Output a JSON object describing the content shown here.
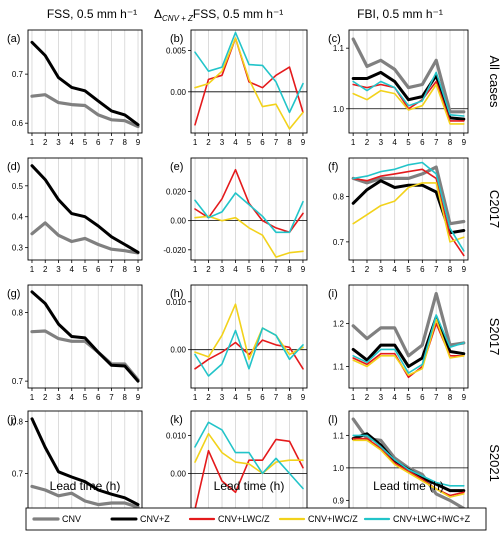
{
  "column_titles": [
    "FSS, 0.5 mm h⁻¹",
    "Δ",
    "CNV + Z",
    "FSS, 0.5 mm h⁻¹",
    "FBI, 0.5 mm h⁻¹"
  ],
  "panel_labels": [
    "(a)",
    "(b)",
    "(c)",
    "(d)",
    "(e)",
    "(f)",
    "(g)",
    "(h)",
    "(i)",
    "(j)",
    "(k)",
    "(l)"
  ],
  "row_labels": [
    "All cases",
    "C2017",
    "S2017",
    "S2021"
  ],
  "xlabel": "Lead time (h)",
  "series": [
    {
      "name": "CNV",
      "color": "#808080"
    },
    {
      "name": "CNV+Z",
      "color": "#000000"
    },
    {
      "name": "CNV+LWC/Z",
      "color": "#e41a1c"
    },
    {
      "name": "CNV+IWC/Z",
      "color": "#f2d21b"
    },
    {
      "name": "CNV+LWC+IWC+Z",
      "color": "#22c4c9"
    }
  ],
  "chart_data": [
    {
      "type": "line",
      "panel": "(a)",
      "row": "All cases",
      "x": [
        1,
        2,
        3,
        4,
        5,
        6,
        7,
        8,
        9
      ],
      "ylim": [
        0.58,
        0.79
      ],
      "yticks": [
        0.6,
        0.7
      ],
      "series": [
        {
          "name": "CNV",
          "values": [
            0.655,
            0.658,
            0.642,
            0.638,
            0.636,
            0.617,
            0.607,
            0.605,
            0.593
          ]
        },
        {
          "name": "CNV+Z",
          "values": [
            0.765,
            0.738,
            0.693,
            0.673,
            0.666,
            0.645,
            0.625,
            0.617,
            0.597
          ]
        }
      ]
    },
    {
      "type": "line",
      "panel": "(b)",
      "row": "All cases",
      "x": [
        1,
        2,
        3,
        4,
        5,
        6,
        7,
        8,
        9
      ],
      "ylim": [
        -0.005,
        0.0075
      ],
      "yticks": [
        0.0,
        0.005
      ],
      "zero_line": true,
      "series": [
        {
          "name": "CNV+LWC/Z",
          "values": [
            -0.004,
            0.0015,
            0.002,
            0.0065,
            0.0012,
            0.0005,
            0.002,
            0.003,
            -0.0025
          ]
        },
        {
          "name": "CNV+IWC/Z",
          "values": [
            0.0005,
            0.001,
            0.0025,
            0.0065,
            0.0015,
            -0.0018,
            -0.0015,
            -0.0045,
            -0.0025
          ]
        },
        {
          "name": "CNV+LWC+IWC+Z",
          "values": [
            0.0048,
            0.0025,
            0.003,
            0.0072,
            0.0033,
            0.0032,
            0.0012,
            -0.0025,
            0.001
          ]
        }
      ]
    },
    {
      "type": "line",
      "panel": "(c)",
      "row": "All cases",
      "x": [
        1,
        2,
        3,
        4,
        5,
        6,
        7,
        8,
        9
      ],
      "ylim": [
        0.96,
        1.13
      ],
      "yticks": [
        1.0,
        1.1
      ],
      "ref_line": 1.0,
      "series": [
        {
          "name": "CNV",
          "values": [
            1.115,
            1.07,
            1.08,
            1.065,
            1.035,
            1.04,
            1.08,
            0.995,
            0.995
          ]
        },
        {
          "name": "CNV+Z",
          "values": [
            1.05,
            1.05,
            1.06,
            1.045,
            1.015,
            1.02,
            1.055,
            0.985,
            0.983
          ]
        },
        {
          "name": "CNV+LWC/Z",
          "values": [
            1.04,
            1.035,
            1.04,
            1.035,
            1.0,
            1.015,
            1.045,
            0.98,
            0.98
          ]
        },
        {
          "name": "CNV+IWC/Z",
          "values": [
            1.025,
            1.015,
            1.03,
            1.025,
            0.998,
            1.005,
            1.04,
            0.975,
            0.975
          ]
        },
        {
          "name": "CNV+LWC+IWC+Z",
          "values": [
            1.045,
            1.03,
            1.045,
            1.035,
            1.005,
            1.013,
            1.06,
            0.99,
            0.988
          ]
        }
      ]
    },
    {
      "type": "line",
      "panel": "(d)",
      "row": "C2017",
      "x": [
        1,
        2,
        3,
        4,
        5,
        6,
        7,
        8,
        9
      ],
      "ylim": [
        0.26,
        0.59
      ],
      "yticks": [
        0.3,
        0.4,
        0.5
      ],
      "series": [
        {
          "name": "CNV",
          "values": [
            0.345,
            0.38,
            0.34,
            0.32,
            0.33,
            0.31,
            0.295,
            0.29,
            0.283
          ]
        },
        {
          "name": "CNV+Z",
          "values": [
            0.565,
            0.52,
            0.455,
            0.41,
            0.4,
            0.37,
            0.335,
            0.31,
            0.285
          ]
        }
      ]
    },
    {
      "type": "line",
      "panel": "(e)",
      "row": "C2017",
      "x": [
        1,
        2,
        3,
        4,
        5,
        6,
        7,
        8,
        9
      ],
      "ylim": [
        -0.027,
        0.043
      ],
      "yticks": [
        -0.02,
        0.0,
        0.02
      ],
      "zero_line": true,
      "series": [
        {
          "name": "CNV+LWC/Z",
          "values": [
            0.008,
            0.002,
            0.015,
            0.035,
            0.012,
            0.0,
            -0.005,
            -0.008,
            0.005
          ]
        },
        {
          "name": "CNV+IWC/Z",
          "values": [
            0.002,
            0.003,
            0.0,
            0.002,
            -0.005,
            -0.01,
            -0.025,
            -0.022,
            -0.021
          ]
        },
        {
          "name": "CNV+LWC+IWC+Z",
          "values": [
            0.014,
            0.002,
            0.006,
            0.019,
            0.011,
            0.003,
            -0.008,
            -0.008,
            0.013
          ]
        }
      ]
    },
    {
      "type": "line",
      "panel": "(f)",
      "row": "C2017",
      "x": [
        1,
        2,
        3,
        4,
        5,
        6,
        7,
        8,
        9
      ],
      "ylim": [
        0.66,
        0.885
      ],
      "yticks": [
        0.7,
        0.8
      ],
      "series": [
        {
          "name": "CNV",
          "values": [
            0.84,
            0.83,
            0.84,
            0.84,
            0.84,
            0.85,
            0.865,
            0.74,
            0.745
          ]
        },
        {
          "name": "CNV+Z",
          "values": [
            0.785,
            0.815,
            0.835,
            0.82,
            0.825,
            0.825,
            0.81,
            0.72,
            0.725
          ]
        },
        {
          "name": "CNV+LWC/Z",
          "values": [
            0.84,
            0.835,
            0.845,
            0.85,
            0.855,
            0.86,
            0.84,
            0.715,
            0.67
          ]
        },
        {
          "name": "CNV+IWC/Z",
          "values": [
            0.74,
            0.76,
            0.78,
            0.79,
            0.82,
            0.83,
            0.83,
            0.7,
            0.71
          ]
        },
        {
          "name": "CNV+LWC+IWC+Z",
          "values": [
            0.84,
            0.845,
            0.855,
            0.86,
            0.87,
            0.875,
            0.85,
            0.73,
            0.68
          ]
        }
      ]
    },
    {
      "type": "line",
      "panel": "(g)",
      "row": "S2017",
      "x": [
        1,
        2,
        3,
        4,
        5,
        6,
        7,
        8,
        9
      ],
      "ylim": [
        0.69,
        0.84
      ],
      "yticks": [
        0.7,
        0.8
      ],
      "series": [
        {
          "name": "CNV",
          "values": [
            0.772,
            0.773,
            0.762,
            0.758,
            0.758,
            0.742,
            0.725,
            0.725,
            0.702
          ]
        },
        {
          "name": "CNV+Z",
          "values": [
            0.83,
            0.813,
            0.783,
            0.765,
            0.763,
            0.742,
            0.723,
            0.722,
            0.7
          ]
        }
      ]
    },
    {
      "type": "line",
      "panel": "(h)",
      "row": "S2017",
      "x": [
        1,
        2,
        3,
        4,
        5,
        6,
        7,
        8,
        9
      ],
      "ylim": [
        -0.008,
        0.0135
      ],
      "yticks": [
        0.0,
        0.01
      ],
      "zero_line": true,
      "series": [
        {
          "name": "CNV+LWC/Z",
          "values": [
            -0.004,
            -0.002,
            -0.0005,
            0.0015,
            -0.001,
            0.002,
            0.001,
            0.0005,
            -0.004
          ]
        },
        {
          "name": "CNV+IWC/Z",
          "values": [
            -0.0005,
            -0.0015,
            0.003,
            0.0095,
            -0.002,
            0.0045,
            0.003,
            -0.001,
            0.0005
          ]
        },
        {
          "name": "CNV+LWC+IWC+Z",
          "values": [
            -0.001,
            -0.0055,
            -0.003,
            0.004,
            -0.004,
            0.0045,
            0.003,
            -0.002,
            0.001
          ]
        }
      ]
    },
    {
      "type": "line",
      "panel": "(i)",
      "row": "S2017",
      "x": [
        1,
        2,
        3,
        4,
        5,
        6,
        7,
        8,
        9
      ],
      "ylim": [
        1.05,
        1.29
      ],
      "yticks": [
        1.1,
        1.2
      ],
      "series": [
        {
          "name": "CNV",
          "values": [
            1.195,
            1.165,
            1.19,
            1.19,
            1.125,
            1.15,
            1.27,
            1.15,
            1.155
          ]
        },
        {
          "name": "CNV+Z",
          "values": [
            1.14,
            1.115,
            1.15,
            1.15,
            1.1,
            1.12,
            1.215,
            1.135,
            1.13
          ]
        },
        {
          "name": "CNV+LWC/Z",
          "values": [
            1.12,
            1.105,
            1.13,
            1.13,
            1.075,
            1.1,
            1.2,
            1.125,
            1.125
          ]
        },
        {
          "name": "CNV+IWC/Z",
          "values": [
            1.115,
            1.1,
            1.125,
            1.125,
            1.08,
            1.095,
            1.21,
            1.12,
            1.125
          ]
        },
        {
          "name": "CNV+LWC+IWC+Z",
          "values": [
            1.125,
            1.11,
            1.14,
            1.14,
            1.085,
            1.105,
            1.22,
            1.145,
            1.155
          ]
        }
      ]
    },
    {
      "type": "line",
      "panel": "(j)",
      "row": "S2021",
      "x": [
        1,
        2,
        3,
        4,
        5,
        6,
        7,
        8,
        9
      ],
      "ylim": [
        0.62,
        0.82
      ],
      "yticks": [
        0.7,
        0.8
      ],
      "series": [
        {
          "name": "CNV",
          "values": [
            0.675,
            0.668,
            0.657,
            0.662,
            0.647,
            0.64,
            0.643,
            0.643,
            0.635
          ]
        },
        {
          "name": "CNV+Z",
          "values": [
            0.805,
            0.75,
            0.703,
            0.693,
            0.684,
            0.668,
            0.66,
            0.653,
            0.64
          ]
        }
      ]
    },
    {
      "type": "line",
      "panel": "(k)",
      "row": "S2021",
      "x": [
        1,
        2,
        3,
        4,
        5,
        6,
        7,
        8,
        9
      ],
      "ylim": [
        -0.011,
        0.0165
      ],
      "yticks": [
        0.0,
        0.01
      ],
      "zero_line": true,
      "series": [
        {
          "name": "CNV+LWC/Z",
          "values": [
            -0.0095,
            0.006,
            -0.002,
            -0.005,
            0.0035,
            0.0035,
            0.009,
            0.0085,
            0.0015
          ]
        },
        {
          "name": "CNV+IWC/Z",
          "values": [
            0.003,
            0.0105,
            0.0055,
            0.003,
            0.0025,
            0.0,
            0.003,
            0.0035,
            0.0035
          ]
        },
        {
          "name": "CNV+LWC+IWC+Z",
          "values": [
            0.007,
            0.0135,
            0.0115,
            0.0055,
            0.0055,
            0.0,
            0.004,
            0.0,
            -0.004
          ]
        }
      ]
    },
    {
      "type": "line",
      "panel": "(l)",
      "row": "S2021",
      "x": [
        1,
        2,
        3,
        4,
        5,
        6,
        7,
        8,
        9
      ],
      "ylim": [
        0.855,
        1.175
      ],
      "yticks": [
        0.9,
        1.0,
        1.1
      ],
      "ref_line": 1.0,
      "series": [
        {
          "name": "CNV",
          "values": [
            1.15,
            1.09,
            1.085,
            1.03,
            1.0,
            0.98,
            0.92,
            0.9,
            0.875
          ]
        },
        {
          "name": "CNV+Z",
          "values": [
            1.09,
            1.105,
            1.07,
            1.02,
            0.995,
            0.97,
            0.95,
            0.93,
            0.93
          ]
        },
        {
          "name": "CNV+LWC/Z",
          "values": [
            1.09,
            1.09,
            1.06,
            1.015,
            0.99,
            0.965,
            0.935,
            0.915,
            0.925
          ]
        },
        {
          "name": "CNV+IWC/Z",
          "values": [
            1.085,
            1.085,
            1.055,
            1.01,
            0.985,
            0.96,
            0.935,
            0.91,
            0.92
          ]
        },
        {
          "name": "CNV+LWC+IWC+Z",
          "values": [
            1.1,
            1.1,
            1.065,
            1.025,
            0.995,
            0.975,
            0.955,
            0.945,
            0.945
          ]
        }
      ]
    }
  ]
}
